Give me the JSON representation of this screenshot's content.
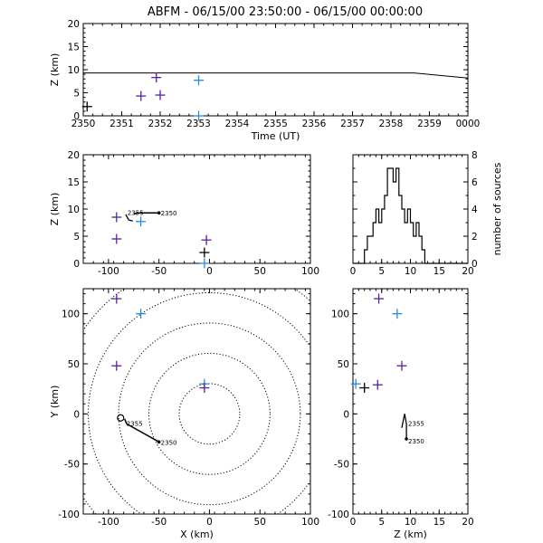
{
  "title": "ABFM - 06/15/00 23:50:00 - 06/15/00 00:00:00",
  "chart_data": [
    {
      "id": "time_height",
      "type": "scatter",
      "xlabel": "Time (UT)",
      "ylabel": "Z (km)",
      "xlim": [
        2350,
        2360
      ],
      "ylim": [
        0,
        20
      ],
      "x_tick_labels": [
        "2350",
        "2351",
        "2352",
        "2353",
        "2354",
        "2355",
        "2356",
        "2357",
        "2358",
        "2359",
        "0000"
      ],
      "y_tick_labels": [
        "0",
        "5",
        "10",
        "15",
        "20"
      ],
      "points": [
        {
          "x": 2350.1,
          "y": 2.0,
          "color": "#000000"
        },
        {
          "x": 2351.5,
          "y": 4.3,
          "color": "#5a1ea6"
        },
        {
          "x": 2351.9,
          "y": 8.3,
          "color": "#5a1ea6"
        },
        {
          "x": 2352.0,
          "y": 4.5,
          "color": "#5a1ea6"
        },
        {
          "x": 2353.0,
          "y": 7.7,
          "color": "#2a8ad8"
        },
        {
          "x": 2353.0,
          "y": 0.0,
          "color": "#2a8ad8"
        }
      ],
      "line": [
        [
          2350,
          9.3
        ],
        [
          2358.6,
          9.3
        ],
        [
          2360,
          8.2
        ]
      ]
    },
    {
      "id": "xz",
      "type": "scatter",
      "ylabel": "Z (km)",
      "xlim": [
        -125,
        100
      ],
      "ylim": [
        0,
        20
      ],
      "x_tick_labels": [
        "-100",
        "-50",
        "0",
        "50",
        "100"
      ],
      "y_tick_labels": [
        "0",
        "5",
        "10",
        "15",
        "20"
      ],
      "points": [
        {
          "x": -92,
          "y": 8.5,
          "color": "#5a1ea6"
        },
        {
          "x": -92,
          "y": 4.5,
          "color": "#5a1ea6"
        },
        {
          "x": -68,
          "y": 7.7,
          "color": "#2a8ad8"
        },
        {
          "x": -3,
          "y": 4.3,
          "color": "#5a1ea6"
        },
        {
          "x": -5,
          "y": 2.0,
          "color": "#000000"
        },
        {
          "x": -5,
          "y": 0.0,
          "color": "#2a8ad8"
        }
      ],
      "track": [
        [
          -75,
          9.1
        ],
        [
          -70,
          9.3
        ],
        [
          -50,
          9.3
        ]
      ],
      "hook": [
        [
          -83,
          9.0
        ],
        [
          -80,
          8.0
        ],
        [
          -76,
          7.8
        ]
      ],
      "track_labels": [
        {
          "text": "2355",
          "x": -83,
          "y": 9.4
        },
        {
          "text": "2350",
          "x": -50,
          "y": 9.3
        }
      ]
    },
    {
      "id": "histogram",
      "type": "bar",
      "ylabel": "number of sources",
      "xlim": [
        0,
        20
      ],
      "ylim": [
        0,
        8
      ],
      "x_tick_labels": [
        "0",
        "5",
        "10",
        "15",
        "20"
      ],
      "y_tick_labels": [
        "0",
        "2",
        "4",
        "6",
        "8"
      ],
      "bin_width": 0.5,
      "bin_start": 0,
      "counts": [
        0,
        0,
        0,
        0,
        1,
        2,
        2,
        3,
        4,
        3,
        4,
        5,
        7,
        7,
        6,
        7,
        5,
        4,
        3,
        4,
        3,
        2,
        3,
        2,
        1,
        0,
        0,
        0,
        0,
        0,
        0,
        0,
        0,
        0,
        0,
        0,
        0,
        0,
        0,
        0
      ]
    },
    {
      "id": "plan",
      "type": "scatter",
      "xlabel": "X (km)",
      "ylabel": "Y (km)",
      "xlim": [
        -125,
        100
      ],
      "ylim": [
        -100,
        125
      ],
      "x_tick_labels": [
        "-100",
        "-50",
        "0",
        "50",
        "100"
      ],
      "y_tick_labels": [
        "-100",
        "-50",
        "0",
        "50",
        "100"
      ],
      "range_rings_km": [
        30,
        60,
        90,
        120,
        150
      ],
      "points": [
        {
          "x": -92,
          "y": 115,
          "color": "#5a1ea6"
        },
        {
          "x": -68,
          "y": 100,
          "color": "#2a8ad8"
        },
        {
          "x": -92,
          "y": 48,
          "color": "#5a1ea6"
        },
        {
          "x": -5,
          "y": 30,
          "color": "#2a8ad8"
        },
        {
          "x": -5,
          "y": 26,
          "color": "#5a1ea6"
        }
      ],
      "track": [
        [
          -84,
          -5
        ],
        [
          -82,
          -10
        ],
        [
          -50,
          -28
        ]
      ],
      "hook_center": [
        -88,
        -4
      ],
      "track_labels": [
        {
          "text": "2355",
          "x": -84,
          "y": -9
        },
        {
          "text": "2350",
          "x": -50,
          "y": -28
        }
      ]
    },
    {
      "id": "zy",
      "type": "scatter",
      "xlabel": "Z (km)",
      "xlim": [
        0,
        20
      ],
      "ylim": [
        -100,
        125
      ],
      "x_tick_labels": [
        "0",
        "5",
        "10",
        "15",
        "20"
      ],
      "y_tick_labels": [
        "-100",
        "-50",
        "0",
        "50",
        "100"
      ],
      "points": [
        {
          "x": 4.5,
          "y": 115,
          "color": "#5a1ea6"
        },
        {
          "x": 7.7,
          "y": 100,
          "color": "#2a8ad8"
        },
        {
          "x": 8.5,
          "y": 48,
          "color": "#5a1ea6"
        },
        {
          "x": 0.5,
          "y": 30,
          "color": "#2a8ad8"
        },
        {
          "x": 2.0,
          "y": 26,
          "color": "#000000"
        },
        {
          "x": 4.3,
          "y": 29,
          "color": "#5a1ea6"
        }
      ],
      "track": [
        [
          9.3,
          -25
        ],
        [
          9.3,
          -10
        ],
        [
          9.0,
          0
        ],
        [
          8.5,
          -14
        ]
      ],
      "track_labels": [
        {
          "text": "2355",
          "x": 9.3,
          "y": -9
        },
        {
          "text": "2350",
          "x": 9.3,
          "y": -27
        }
      ]
    }
  ]
}
